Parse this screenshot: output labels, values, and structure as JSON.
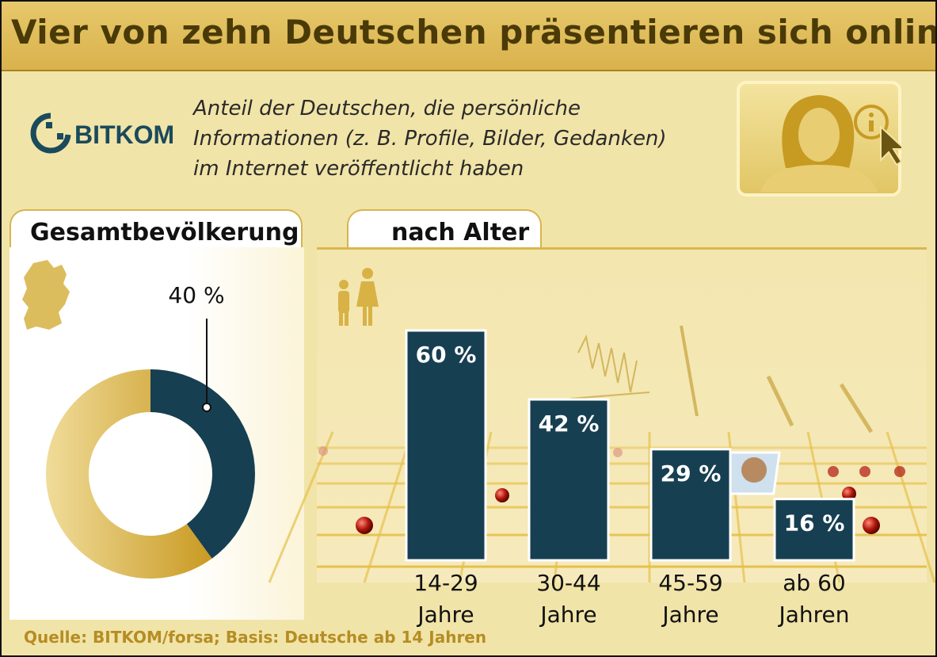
{
  "title": "Vier von zehn Deutschen präsentieren sich online",
  "logo": {
    "text": "BITKOM"
  },
  "subtitle_lines": [
    "Anteil der Deutschen, die persönliche",
    "Informationen (z. B. Profile, Bilder, Gedanken)",
    "im Internet veröffentlicht haben"
  ],
  "tabs": {
    "total": "Gesamtbevölkerung",
    "age": "nach Alter"
  },
  "source": "Quelle: BITKOM/forsa; Basis: Deutsche ab 14 Jahren",
  "colors": {
    "dark_teal": "#173f52",
    "gold": "#d4ad3c",
    "title_text": "#4a3a08",
    "source_text": "#b58d24"
  },
  "chart_data": [
    {
      "type": "pie",
      "variant": "donut",
      "values": [
        40,
        60
      ],
      "value_label": "40 %",
      "highlight_index": 0
    },
    {
      "type": "bar",
      "categories": [
        "14-29 Jahre",
        "30-44 Jahre",
        "45-59 Jahre",
        "ab 60 Jahren"
      ],
      "category_lines": [
        [
          "14-29",
          "Jahre"
        ],
        [
          "30-44",
          "Jahre"
        ],
        [
          "45-59",
          "Jahre"
        ],
        [
          "ab 60",
          "Jahren"
        ]
      ],
      "values": [
        60,
        42,
        29,
        16
      ],
      "value_labels": [
        "60 %",
        "42 %",
        "29 %",
        "16 %"
      ],
      "ylim": [
        0,
        60
      ],
      "grid": false,
      "legend": "none"
    }
  ]
}
